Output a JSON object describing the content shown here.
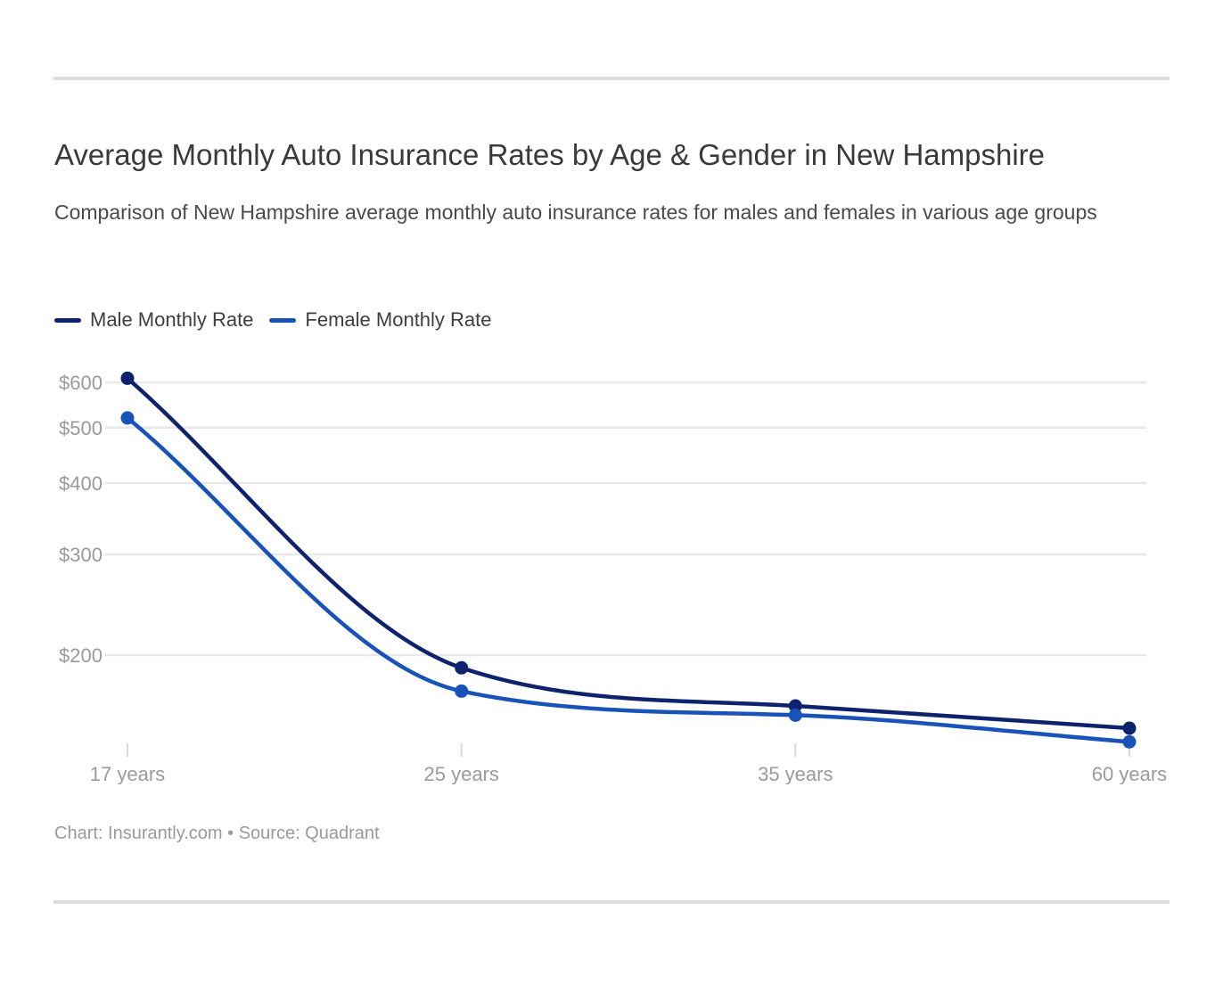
{
  "page": {
    "title": "Average Monthly Auto Insurance Rates by Age & Gender in New Hampshire",
    "subtitle": "Comparison of New Hampshire average monthly auto insurance rates for males and females in various age groups",
    "footer": "Chart: Insurantly.com • Source: Quadrant"
  },
  "chart_data": {
    "type": "line",
    "title": "Average Monthly Auto Insurance Rates by Age & Gender in New Hampshire",
    "subtitle": "Comparison of New Hampshire average monthly auto insurance rates for males and females in various age groups",
    "categories": [
      "17 years",
      "25 years",
      "35 years",
      "60 years"
    ],
    "series": [
      {
        "name": "Male Monthly Rate",
        "color": "#0e226e",
        "values": [
          610,
          190,
          163,
          149
        ]
      },
      {
        "name": "Female Monthly Rate",
        "color": "#1a53b8",
        "values": [
          520,
          173,
          157,
          141
        ]
      }
    ],
    "xlabel": "",
    "ylabel": "",
    "y_axis": {
      "scale": "log",
      "tick_values": [
        600,
        500,
        400,
        300,
        200
      ],
      "tick_labels": [
        "$600",
        "$500",
        "$400",
        "$300",
        "$200"
      ],
      "range_approx": [
        135,
        650
      ]
    },
    "grid": "horizontal-only",
    "legend_position": "top-left",
    "marker": "filled-circle"
  },
  "colors": {
    "grid_line": "#e8e8e8",
    "axis_text": "#9a9a9a",
    "tick_mark": "#d9d9d9",
    "divider_rule": "#dcdcdc",
    "title_text": "#3a3a3a",
    "subtitle_text": "#4a4a4a",
    "legend_text": "#3e3e3e",
    "footer_text": "#9a9a9a"
  }
}
